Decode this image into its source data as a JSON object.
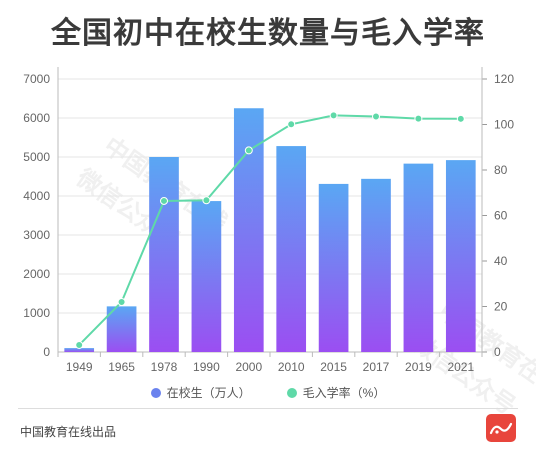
{
  "title": "全国初中在校生数量与毛入学率",
  "footer": {
    "source": "中国教育在线出品"
  },
  "watermark": {
    "line1": "中国教育在线",
    "line2": "微信公众号"
  },
  "colors": {
    "bar_top": "#5aa7f3",
    "bar_bottom": "#9b4ef2",
    "line": "#5fd9a8",
    "legend_bar": "#6a82ee",
    "legend_line": "#5fd9a8",
    "logo": "#e8453c"
  },
  "chart_data": {
    "type": "bar",
    "title": "全国初中在校生数量与毛入学率",
    "categories": [
      "1949",
      "1965",
      "1978",
      "1990",
      "2000",
      "2010",
      "2015",
      "2017",
      "2019",
      "2021"
    ],
    "series": [
      {
        "name": "在校生（万人）",
        "type": "bar",
        "axis": "left",
        "values": [
          100,
          1170,
          5000,
          3870,
          6250,
          5280,
          4310,
          4440,
          4830,
          4920
        ]
      },
      {
        "name": "毛入学率（%）",
        "type": "line",
        "axis": "right",
        "values": [
          3.1,
          22,
          66.4,
          66.7,
          88.6,
          100.1,
          104,
          103.5,
          102.6,
          102.5
        ]
      }
    ],
    "ylim_left": [
      0,
      7000
    ],
    "yticks_left": [
      0,
      1000,
      2000,
      3000,
      4000,
      5000,
      6000,
      7000
    ],
    "ylim_right": [
      0,
      120
    ],
    "yticks_right": [
      0,
      20,
      40,
      60,
      80,
      100,
      120
    ],
    "grid": true,
    "legend_position": "bottom"
  }
}
